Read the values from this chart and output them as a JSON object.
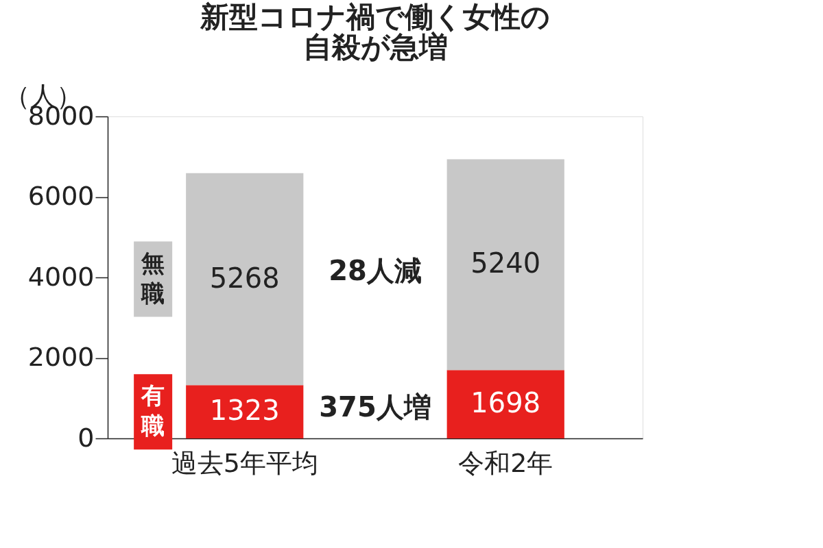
{
  "chart_data": {
    "type": "bar",
    "title": "新型コロナ禍で働く女性の自殺が急増",
    "ylabel": "（人）",
    "categories": [
      "過去5年平均",
      "令和2年"
    ],
    "series": [
      {
        "name": "有職",
        "color": "#e8201e",
        "values": [
          1323,
          1698
        ]
      },
      {
        "name": "無職",
        "color": "#c8c8c8",
        "values": [
          5268,
          5240
        ]
      }
    ],
    "stacked": true,
    "data_labels": true,
    "ylim": [
      0,
      8000
    ],
    "yticks": [
      0,
      2000,
      4000,
      6000,
      8000
    ],
    "grid": false,
    "legend": false,
    "annotations": [
      "375人増",
      "28人減"
    ]
  }
}
